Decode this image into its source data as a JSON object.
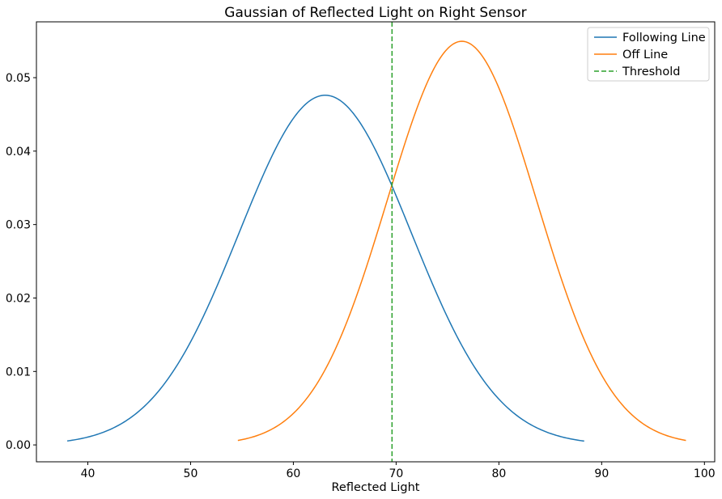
{
  "chart_data": {
    "type": "line",
    "title": "Gaussian of Reflected Light on Right Sensor",
    "xlabel": "Reflected Light",
    "ylabel": "",
    "xlim": [
      35,
      101
    ],
    "ylim": [
      -0.0023,
      0.0576
    ],
    "xticks": [
      40,
      50,
      60,
      70,
      80,
      90,
      100
    ],
    "yticks": [
      0.0,
      0.01,
      0.02,
      0.03,
      0.04,
      0.05
    ],
    "ytick_labels": [
      "0.00",
      "0.01",
      "0.02",
      "0.03",
      "0.04",
      "0.05"
    ],
    "grid": false,
    "legend_position": "top-right",
    "series": [
      {
        "name": "Following Line",
        "kind": "gaussian",
        "mean": 63.1,
        "std": 8.38,
        "x_range": [
          38.0,
          88.3
        ],
        "color": "#1f77b4"
      },
      {
        "name": "Off Line",
        "kind": "gaussian",
        "mean": 76.4,
        "std": 7.26,
        "x_range": [
          54.6,
          98.2
        ],
        "color": "#ff7f0e"
      },
      {
        "name": "Threshold",
        "kind": "vline",
        "x": 69.6,
        "color": "#2ca02c",
        "style": "dashed"
      }
    ]
  }
}
